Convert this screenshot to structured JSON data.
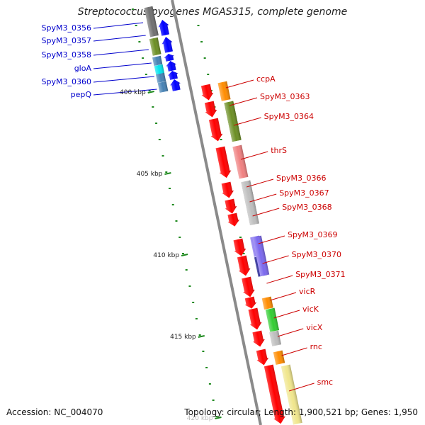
{
  "title": "Streptococcus pyogenes MGAS315, complete genome",
  "accession_label": "Accession: NC_004070",
  "summary_label": "Topology: circular; Length: 1,900,521 bp; Genes: 1,950",
  "colors": {
    "backbone": "#8a8a8a",
    "tick": "#1f8a1f",
    "forward_arrow": "#ff0000",
    "reverse_arrow": "#0000ff",
    "label_forward": "#cc0000",
    "label_reverse": "#0000cc"
  },
  "ruler": [
    {
      "label": "400 kbp",
      "kbp": 400
    },
    {
      "label": "405 kbp",
      "kbp": 405
    },
    {
      "label": "410 kbp",
      "kbp": 410
    },
    {
      "label": "415 kbp",
      "kbp": 415
    },
    {
      "label": "420 kbp",
      "kbp": 420
    }
  ],
  "reverse_genes": [
    {
      "label": "SpyM3_0356",
      "cog_color": "#707070"
    },
    {
      "label": "SpyM3_0357",
      "cog_color": "#6b8e23"
    },
    {
      "label": "SpyM3_0358",
      "cog_color": "#4682b4"
    },
    {
      "label": "gloA",
      "cog_color": "#00e5ee"
    },
    {
      "label": "SpyM3_0360",
      "cog_color": "#4682b4"
    },
    {
      "label": "pepQ",
      "cog_color": "#4682b4"
    }
  ],
  "forward_genes": [
    {
      "label": "ccpA",
      "cog_color": "#ff8c00"
    },
    {
      "label": "SpyM3_0363",
      "cog_color": "#6b8e23"
    },
    {
      "label": "SpyM3_0364",
      "cog_color": "#6b8e23"
    },
    {
      "label": "thrS",
      "cog_color": "#f08080"
    },
    {
      "label": "SpyM3_0366",
      "cog_color": "#bebebe"
    },
    {
      "label": "SpyM3_0367",
      "cog_color": "#bebebe"
    },
    {
      "label": "SpyM3_0368",
      "cog_color": "#bebebe"
    },
    {
      "label": "SpyM3_0369",
      "cog_color": "#7b68ee"
    },
    {
      "label": "SpyM3_0370",
      "cog_color": "#000080"
    },
    {
      "label": "SpyM3_0371",
      "cog_color": "#7b68ee"
    },
    {
      "label": "vicR",
      "cog_color": "#ff8c00"
    },
    {
      "label": "vicK",
      "cog_color": "#32cd32"
    },
    {
      "label": "vicX",
      "cog_color": "#bebebe"
    },
    {
      "label": "rnc",
      "cog_color": "#ff8c00"
    },
    {
      "label": "smc",
      "cog_color": "#f0e68c"
    }
  ]
}
